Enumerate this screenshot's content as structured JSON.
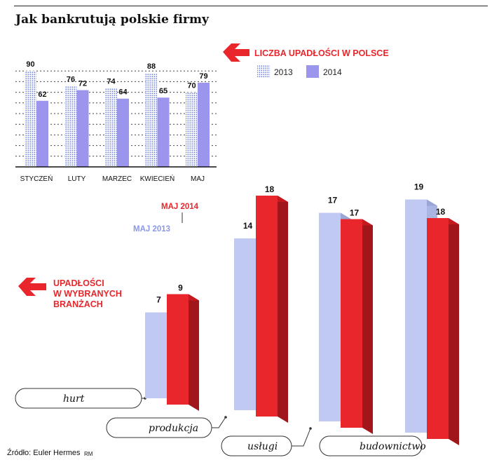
{
  "title": "Jak bankrutują polskie firmy",
  "source": "Źródło: Euler Hermes",
  "signature": "RM",
  "colors": {
    "accent_red": "#e8262b",
    "series_2013": "#8a98e8",
    "series_2014": "#9b95ee",
    "light_2013_bar": "#bfc9f2",
    "dark_red_side": "#a0161a"
  },
  "chart_data": [
    {
      "type": "bar",
      "title": "LICZBA UPADŁOŚCI W POLSCE",
      "categories": [
        "STYCZEŃ",
        "LUTY",
        "MARZEC",
        "KWIECIEŃ",
        "MAJ"
      ],
      "series": [
        {
          "name": "2013",
          "values": [
            90,
            76,
            74,
            88,
            70
          ],
          "color": "#8a98e8",
          "pattern": "dotted"
        },
        {
          "name": "2014",
          "values": [
            62,
            72,
            64,
            65,
            79
          ],
          "color": "#9b95ee",
          "pattern": "solid"
        }
      ],
      "ylim": [
        0,
        100
      ],
      "grid": true,
      "legend": "top-right",
      "xlabel": "",
      "ylabel": ""
    },
    {
      "type": "bar",
      "title": "UPADŁOŚCI W WYBRANYCH BRANŻACH",
      "categories": [
        "hurt",
        "produkcja",
        "usługi",
        "budownictwo"
      ],
      "series": [
        {
          "name": "MAJ 2013",
          "values": [
            7,
            14,
            17,
            19
          ],
          "color": "#bfc9f2"
        },
        {
          "name": "MAJ 2014",
          "values": [
            9,
            18,
            17,
            18
          ],
          "color": "#e8262b"
        }
      ],
      "ylim": [
        0,
        20
      ],
      "legend": "annotation",
      "xlabel": "",
      "ylabel": ""
    }
  ]
}
